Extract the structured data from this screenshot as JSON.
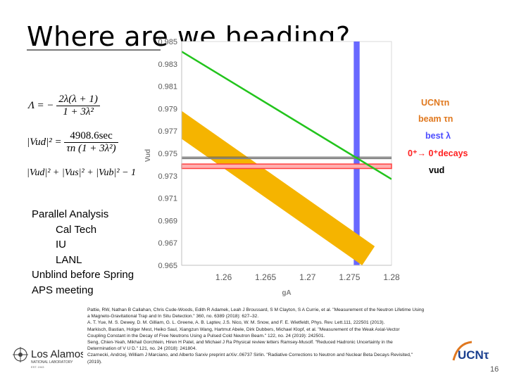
{
  "slide": {
    "title": "Where are we heading?",
    "page_number": "16"
  },
  "equations": {
    "lambda_lhs": "Λ = −",
    "lambda_num": "2λ(λ + 1)",
    "lambda_den": "1 + 3λ²",
    "vud_lhs": "|Vud|² =",
    "vud_num": "4908.6sec",
    "vud_den": "τn (1 + 3λ²)",
    "unitarity": "|Vud|² + |Vus|² + |Vub|² − 1"
  },
  "analysis": {
    "heading": "Parallel Analysis",
    "items": [
      "Cal Tech",
      "IU",
      "LANL"
    ],
    "line_unblind": "Unblind before Spring",
    "line_aps": "APS meeting"
  },
  "legend": {
    "ucn": "UCNτn",
    "beam": "beam τn",
    "best": "best λ",
    "decays": "0⁺→ 0⁺decays",
    "vud": "vud"
  },
  "colors": {
    "ucn_band": "#22c41c",
    "beam_band": "#f5b400",
    "lambda_band": "#4d4dff",
    "decay_band": "#ff4040",
    "vud_line": "#808080"
  },
  "chart_data": {
    "type": "line",
    "xlabel": "gA",
    "ylabel": "Vud",
    "xlim": [
      1.255,
      1.28
    ],
    "ylim": [
      0.965,
      0.985
    ],
    "xticks": [
      "1.26",
      "1.265",
      "1.27",
      "1.275",
      "1.28"
    ],
    "yticks": [
      "0.985",
      "0.983",
      "0.981",
      "0.979",
      "0.977",
      "0.975",
      "0.973",
      "0.971",
      "0.969",
      "0.967",
      "0.965"
    ],
    "grid": false,
    "legend_position": "right",
    "bands": {
      "ucn_tau": {
        "x": [
          1.255,
          1.28
        ],
        "y": [
          0.9841,
          0.9727
        ],
        "width": 0.00025
      },
      "beam_tau": {
        "x_upper": [
          1.255,
          1.278
        ],
        "y_upper": [
          0.9788,
          0.9667
        ],
        "x_lower": [
          1.255,
          1.2765
        ],
        "y_lower": [
          0.9763,
          0.965
        ]
      },
      "best_lambda": {
        "x_min": 1.2755,
        "x_max": 1.2762
      },
      "superallowed": {
        "y_min": 0.97365,
        "y_max": 0.97405
      },
      "vud_line": {
        "y": 0.97455
      }
    }
  },
  "references": [
    "Pattie, RW, Nathan B Callahan, Chris Cude-Woods, Edith R Adamek, Leah J Broussard, S M Clayton, S A Currie, et al. \"Measurement of the Neutron Lifetime Using",
    "a Magneto-Gravitational Trap and In Situ Detection.\" 360, no. 6389 (2018): 627–32.",
    "A.     T. Yue, M. S. Dewey, D. M. Gilliam, G. L. Greene, A. B. Laptev, J.S. Nico, W. M. Snow, and F. E. Wietfeldt, Phys. Rev. Lett.111, 222501 (2013).",
    "Markisch, Bastian, Holger Mest, Heiko Saul, Xiangzun Wang, Hartmut Abele, Dirk Dubbers, Michael Klopf, et al. \"Measurement of the Weak Axial-Vector",
    "Coupling Constant in the Decay of Free Neutrons Using a Pulsed Cold Neutron Beam.\" 122, no. 24 (2019): 242501.",
    "Seng, Chien-Yeah, Mikhail Gorchtein, Hiren H Patel, and Michael J Ra Physical review letters Ramsey-Musolf. \"Reduced Hadronic Uncertainty in the",
    "Determination of V U D.\" 121, no. 24 (2018): 241804.",
    "Czarnecki, Andrzej, William J Marciano, and Alberto Sarxiv preprint arXiv:.06737 Sirlin. \"Radiative Corrections to Neutron and Nuclear Beta Decays Revisited,\"",
    "(2019)."
  ],
  "logos": {
    "lanl_line1": "Los Alamos",
    "lanl_line2": "NATIONAL LABORATORY",
    "lanl_line3": "EST. 1943",
    "ucn": "UCNτ"
  }
}
